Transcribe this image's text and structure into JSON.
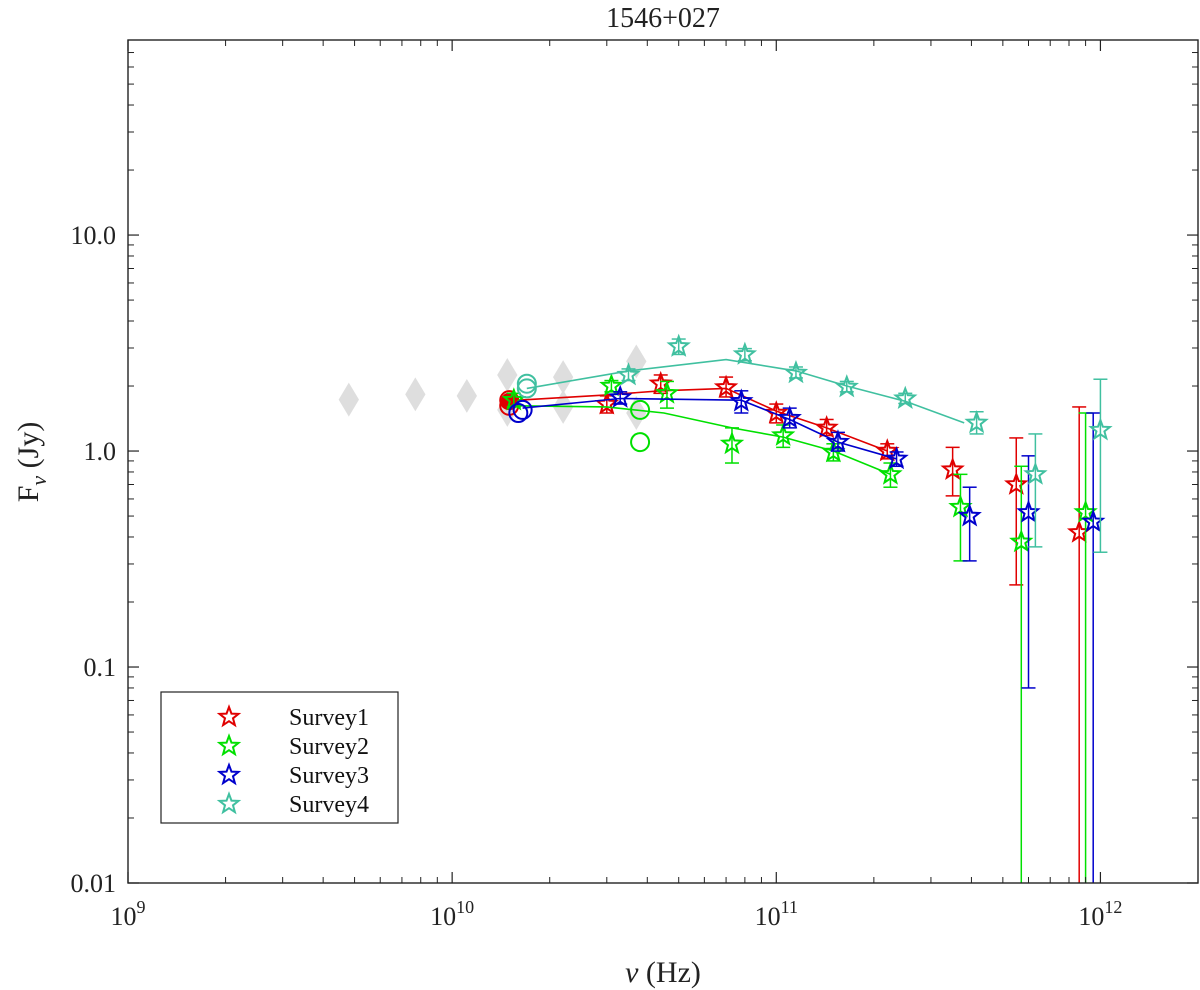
{
  "chart_data": {
    "type": "scatter",
    "title": "1546+027",
    "xlabel": "ν (Hz)",
    "ylabel": "F",
    "ylabel_sub": "ν",
    "ylabel_unit": "(Jy)",
    "xscale": "log",
    "yscale": "log",
    "xlim": [
      1000000000.0,
      2000000000000.0
    ],
    "ylim": [
      0.01,
      80
    ],
    "x_ticks": [
      {
        "value": 1000000000.0,
        "base": "10",
        "exp": "9"
      },
      {
        "value": 10000000000.0,
        "base": "10",
        "exp": "10"
      },
      {
        "value": 100000000000.0,
        "base": "10",
        "exp": "11"
      },
      {
        "value": 1000000000000.0,
        "base": "10",
        "exp": "12"
      }
    ],
    "y_ticks": [
      {
        "value": 0.01,
        "label": "0.01"
      },
      {
        "value": 0.1,
        "label": "0.1"
      },
      {
        "value": 1,
        "label": "1.0"
      },
      {
        "value": 10,
        "label": "10.0"
      }
    ],
    "legend_position": "bottom-left",
    "legend": [
      "Survey1",
      "Survey2",
      "Survey3",
      "Survey4"
    ],
    "background_points": {
      "color": "#dddddd",
      "marker": "diamond",
      "points": [
        {
          "x": 4800000000.0,
          "y": 1.73
        },
        {
          "x": 7700000000.0,
          "y": 1.83
        },
        {
          "x": 11100000000.0,
          "y": 1.8
        },
        {
          "x": 14800000000.0,
          "y": 2.25
        },
        {
          "x": 14800000000.0,
          "y": 1.55
        },
        {
          "x": 22000000000.0,
          "y": 2.2
        },
        {
          "x": 22000000000.0,
          "y": 1.6
        },
        {
          "x": 37000000000.0,
          "y": 2.6
        },
        {
          "x": 37000000000.0,
          "y": 1.5
        }
      ]
    },
    "series": [
      {
        "name": "Survey1",
        "color": "#e00000",
        "line": [
          [
            15000000000.0,
            1.62
          ],
          [
            16000000000.0,
            1.72
          ],
          [
            30000000000.0,
            1.82
          ],
          [
            44000000000.0,
            1.9
          ],
          [
            70000000000.0,
            1.95
          ],
          [
            100000000000.0,
            1.53
          ],
          [
            143000000000.0,
            1.28
          ],
          [
            220000000000.0,
            1.0
          ]
        ],
        "circles": [
          {
            "x": 15000000000.0,
            "y": 1.62
          },
          {
            "x": 15000000000.0,
            "y": 1.72
          }
        ],
        "filled_markers": [
          {
            "x": 15000000000.0,
            "y": 1.7
          }
        ],
        "points": [
          {
            "x": 30000000000.0,
            "y": 1.65,
            "lo": 1.5,
            "hi": 1.8
          },
          {
            "x": 44000000000.0,
            "y": 2.05,
            "lo": 1.85,
            "hi": 2.25
          },
          {
            "x": 70000000000.0,
            "y": 1.97,
            "lo": 1.78,
            "hi": 2.2
          },
          {
            "x": 100000000000.0,
            "y": 1.5,
            "lo": 1.35,
            "hi": 1.65
          },
          {
            "x": 143000000000.0,
            "y": 1.28,
            "lo": 1.18,
            "hi": 1.4
          },
          {
            "x": 220000000000.0,
            "y": 1.0,
            "lo": 0.92,
            "hi": 1.08
          },
          {
            "x": 350000000000.0,
            "y": 0.82,
            "lo": 0.62,
            "hi": 1.04
          },
          {
            "x": 550000000000.0,
            "y": 0.7,
            "lo": 0.24,
            "hi": 1.15
          },
          {
            "x": 860000000000.0,
            "y": 0.42,
            "lo": 0.01,
            "hi": 1.6
          }
        ]
      },
      {
        "name": "Survey2",
        "color": "#00e000",
        "line": [
          [
            16000000000.0,
            1.62
          ],
          [
            30000000000.0,
            1.6
          ],
          [
            45000000000.0,
            1.5
          ],
          [
            73000000000.0,
            1.28
          ],
          [
            105000000000.0,
            1.16
          ],
          [
            150000000000.0,
            1.0
          ],
          [
            225000000000.0,
            0.78
          ]
        ],
        "circles": [
          {
            "x": 38000000000.0,
            "y": 1.55
          },
          {
            "x": 38000000000.0,
            "y": 1.1
          }
        ],
        "filled_markers": [],
        "points": [
          {
            "x": 15500000000.0,
            "y": 1.72,
            "lo": 1.6,
            "hi": 1.85
          },
          {
            "x": 31000000000.0,
            "y": 2.0,
            "lo": 1.88,
            "hi": 2.12
          },
          {
            "x": 46000000000.0,
            "y": 1.85,
            "lo": 1.58,
            "hi": 2.1
          },
          {
            "x": 73000000000.0,
            "y": 1.08,
            "lo": 0.88,
            "hi": 1.28
          },
          {
            "x": 105000000000.0,
            "y": 1.18,
            "lo": 1.04,
            "hi": 1.32
          },
          {
            "x": 150000000000.0,
            "y": 0.99,
            "lo": 0.9,
            "hi": 1.08
          },
          {
            "x": 225000000000.0,
            "y": 0.78,
            "lo": 0.68,
            "hi": 0.88
          },
          {
            "x": 370000000000.0,
            "y": 0.55,
            "lo": 0.31,
            "hi": 0.78
          },
          {
            "x": 570000000000.0,
            "y": 0.38,
            "lo": 0.01,
            "hi": 0.85
          },
          {
            "x": 900000000000.0,
            "y": 0.52,
            "lo": 0.01,
            "hi": 1.5
          }
        ]
      },
      {
        "name": "Survey3",
        "color": "#0000cc",
        "line": [
          [
            16500000000.0,
            1.58
          ],
          [
            33000000000.0,
            1.75
          ],
          [
            78000000000.0,
            1.72
          ],
          [
            110000000000.0,
            1.4
          ],
          [
            155000000000.0,
            1.1
          ],
          [
            235000000000.0,
            0.92
          ]
        ],
        "circles": [
          {
            "x": 16000000000.0,
            "y": 1.5
          },
          {
            "x": 16500000000.0,
            "y": 1.55
          }
        ],
        "filled_markers": [],
        "points": [
          {
            "x": 33000000000.0,
            "y": 1.77,
            "lo": 1.65,
            "hi": 1.88
          },
          {
            "x": 78000000000.0,
            "y": 1.7,
            "lo": 1.5,
            "hi": 1.9
          },
          {
            "x": 110000000000.0,
            "y": 1.42,
            "lo": 1.28,
            "hi": 1.58
          },
          {
            "x": 155000000000.0,
            "y": 1.1,
            "lo": 1.0,
            "hi": 1.22
          },
          {
            "x": 235000000000.0,
            "y": 0.92,
            "lo": 0.85,
            "hi": 0.99
          },
          {
            "x": 395000000000.0,
            "y": 0.5,
            "lo": 0.31,
            "hi": 0.68
          },
          {
            "x": 600000000000.0,
            "y": 0.52,
            "lo": 0.08,
            "hi": 0.95
          },
          {
            "x": 950000000000.0,
            "y": 0.47,
            "lo": 0.01,
            "hi": 1.5
          }
        ]
      },
      {
        "name": "Survey4",
        "color": "#40c0a0",
        "line": [
          [
            17000000000.0,
            1.95
          ],
          [
            35000000000.0,
            2.35
          ],
          [
            70000000000.0,
            2.65
          ],
          [
            115000000000.0,
            2.35
          ],
          [
            165000000000.0,
            2.0
          ],
          [
            250000000000.0,
            1.7
          ],
          [
            380000000000.0,
            1.35
          ]
        ],
        "circles": [
          {
            "x": 17000000000.0,
            "y": 1.95
          },
          {
            "x": 17000000000.0,
            "y": 2.05
          }
        ],
        "filled_markers": [],
        "points": [
          {
            "x": 35000000000.0,
            "y": 2.25,
            "lo": 2.12,
            "hi": 2.4
          },
          {
            "x": 50000000000.0,
            "y": 3.05,
            "lo": 2.8,
            "hi": 3.3
          },
          {
            "x": 80000000000.0,
            "y": 2.8,
            "lo": 2.62,
            "hi": 2.98
          },
          {
            "x": 115000000000.0,
            "y": 2.3,
            "lo": 2.18,
            "hi": 2.45
          },
          {
            "x": 165000000000.0,
            "y": 1.98,
            "lo": 1.88,
            "hi": 2.1
          },
          {
            "x": 250000000000.0,
            "y": 1.75,
            "lo": 1.66,
            "hi": 1.85
          },
          {
            "x": 415000000000.0,
            "y": 1.35,
            "lo": 1.2,
            "hi": 1.52
          },
          {
            "x": 630000000000.0,
            "y": 0.78,
            "lo": 0.36,
            "hi": 1.2
          },
          {
            "x": 1000000000000.0,
            "y": 1.25,
            "lo": 0.34,
            "hi": 2.15
          }
        ]
      }
    ]
  }
}
